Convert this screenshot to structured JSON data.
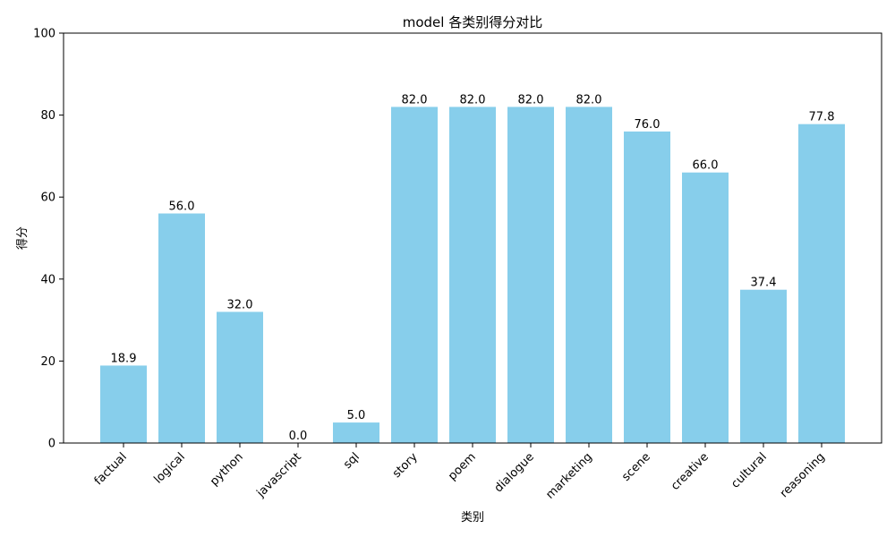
{
  "chart_data": {
    "type": "bar",
    "title": "model 各类别得分对比",
    "xlabel": "类别",
    "ylabel": "得分",
    "categories": [
      "factual",
      "logical",
      "python",
      "javascript",
      "sql",
      "story",
      "poem",
      "dialogue",
      "marketing",
      "scene",
      "creative",
      "cultural",
      "reasoning"
    ],
    "values": [
      18.9,
      56.0,
      32.0,
      0.0,
      5.0,
      82.0,
      82.0,
      82.0,
      82.0,
      76.0,
      66.0,
      37.4,
      77.8
    ],
    "data_labels": [
      "18.9",
      "56.0",
      "32.0",
      "0.0",
      "5.0",
      "82.0",
      "82.0",
      "82.0",
      "82.0",
      "76.0",
      "66.0",
      "37.4",
      "77.8"
    ],
    "ylim": [
      0,
      100
    ],
    "yticks": [
      0,
      20,
      40,
      60,
      80,
      100
    ],
    "bar_color": "#87ceeb",
    "grid": false,
    "legend": false
  }
}
